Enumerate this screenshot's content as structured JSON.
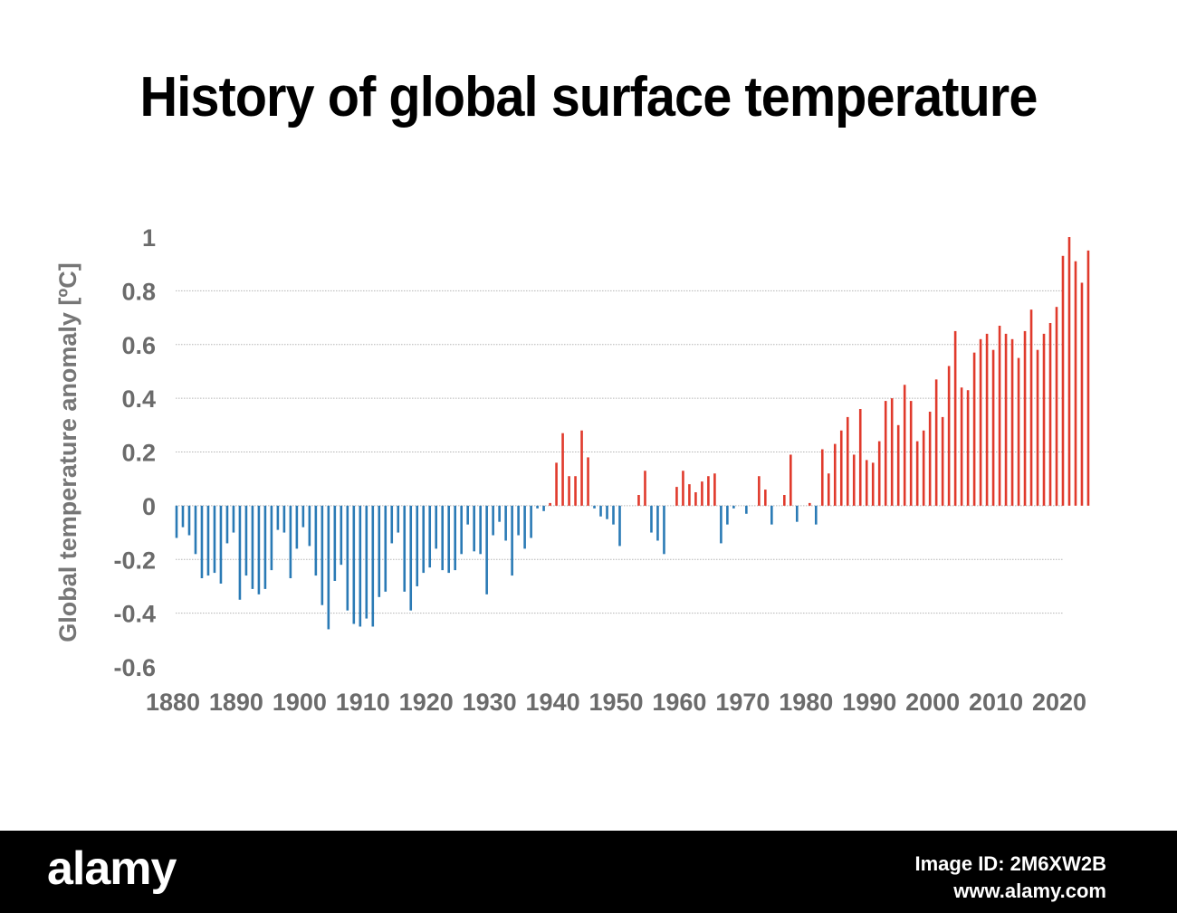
{
  "chart_data": {
    "type": "bar",
    "title": "History of global surface temperature",
    "ylabel": "Global temperature anomaly [ºC]",
    "xlabel": "",
    "ylim": [
      -0.6,
      1.0
    ],
    "xlim": [
      1880,
      2020
    ],
    "yticks": [
      "1",
      "0.8",
      "0.6",
      "0.4",
      "0.2",
      "0",
      "-0.2",
      "-0.4",
      "-0.6"
    ],
    "xticks": [
      "1880",
      "1890",
      "1900",
      "1910",
      "1920",
      "1930",
      "1940",
      "1950",
      "1960",
      "1970",
      "1980",
      "1990",
      "2000",
      "2010",
      "2020"
    ],
    "grid": "horizontal dotted",
    "colors": {
      "positive": "#e03a2c",
      "negative": "#2a7ab5"
    },
    "x_start": 1880,
    "values": [
      -0.12,
      -0.08,
      -0.11,
      -0.18,
      -0.27,
      -0.26,
      -0.25,
      -0.29,
      -0.14,
      -0.1,
      -0.35,
      -0.26,
      -0.31,
      -0.33,
      -0.31,
      -0.24,
      -0.09,
      -0.1,
      -0.27,
      -0.16,
      -0.08,
      -0.15,
      -0.26,
      -0.37,
      -0.46,
      -0.28,
      -0.22,
      -0.39,
      -0.44,
      -0.45,
      -0.42,
      -0.45,
      -0.34,
      -0.32,
      -0.14,
      -0.1,
      -0.32,
      -0.39,
      -0.3,
      -0.25,
      -0.23,
      -0.16,
      -0.24,
      -0.25,
      -0.24,
      -0.18,
      -0.07,
      -0.17,
      -0.18,
      -0.33,
      -0.11,
      -0.06,
      -0.13,
      -0.26,
      -0.11,
      -0.16,
      -0.12,
      -0.01,
      -0.02,
      0.01,
      0.16,
      0.27,
      0.11,
      0.11,
      0.28,
      0.18,
      -0.01,
      -0.04,
      -0.05,
      -0.07,
      -0.15,
      0.0,
      0.0,
      0.04,
      0.13,
      -0.1,
      -0.13,
      -0.18,
      0.0,
      0.07,
      0.13,
      0.08,
      0.05,
      0.09,
      0.11,
      0.12,
      -0.14,
      -0.07,
      -0.01,
      0.0,
      -0.03,
      0.0,
      0.11,
      0.06,
      -0.07,
      0.0,
      0.04,
      0.19,
      -0.06,
      0.0,
      0.01,
      -0.07,
      0.21,
      0.12,
      0.23,
      0.28,
      0.33,
      0.19,
      0.36,
      0.17,
      0.16,
      0.24,
      0.39,
      0.4,
      0.3,
      0.45,
      0.39,
      0.24,
      0.28,
      0.35,
      0.47,
      0.33,
      0.52,
      0.65,
      0.44,
      0.43,
      0.57,
      0.62,
      0.64,
      0.58,
      0.67,
      0.64,
      0.62,
      0.55,
      0.65,
      0.73,
      0.58,
      0.64,
      0.68,
      0.74,
      0.93,
      1.0,
      0.91,
      0.83,
      0.95
    ]
  },
  "watermark": {
    "logo_text": "alamy",
    "image_id_line1": "Image ID: 2M6XW2B",
    "image_id_line2": "www.alamy.com"
  }
}
